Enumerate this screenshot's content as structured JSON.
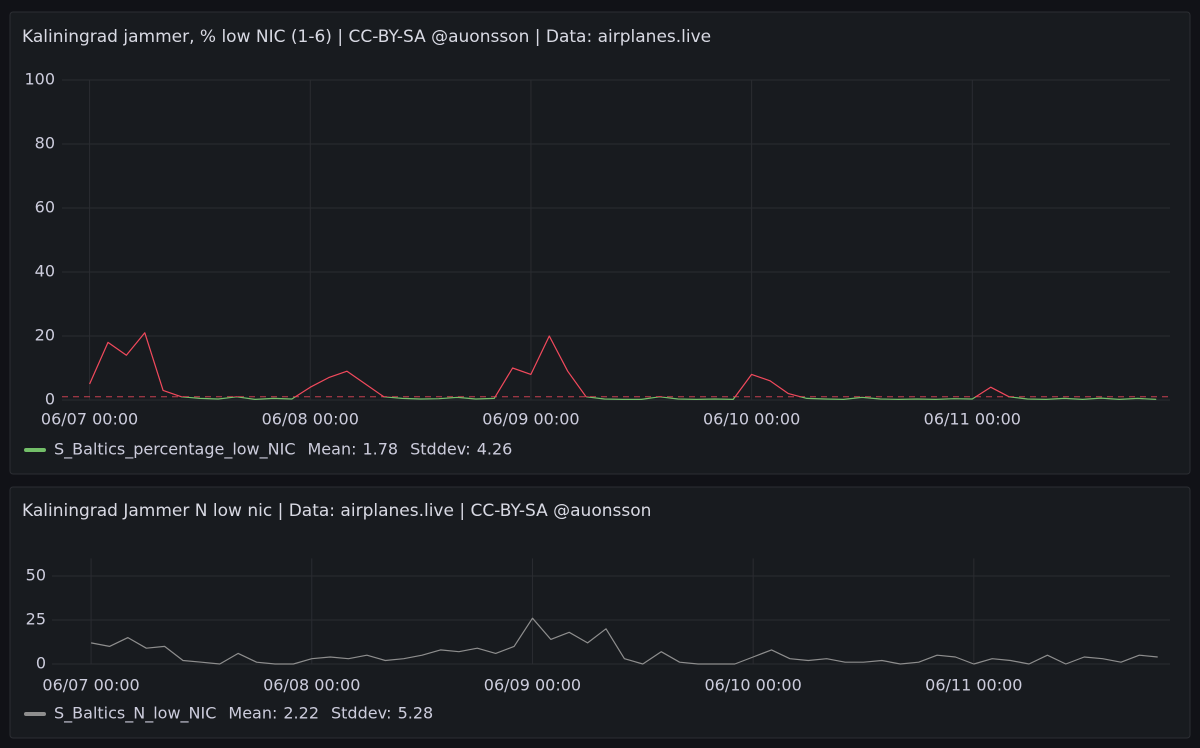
{
  "chart_data": [
    {
      "type": "line",
      "title": "Kaliningrad jammer, % low NIC (1-6) | CC-BY-SA @auonsson | Data: airplanes.live",
      "x": [
        "06/07 00:00",
        "06/07 02:00",
        "06/07 04:00",
        "06/07 06:00",
        "06/07 08:00",
        "06/07 10:00",
        "06/07 12:00",
        "06/07 14:00",
        "06/07 16:00",
        "06/07 18:00",
        "06/07 20:00",
        "06/07 22:00",
        "06/08 00:00",
        "06/08 02:00",
        "06/08 04:00",
        "06/08 06:00",
        "06/08 08:00",
        "06/08 10:00",
        "06/08 12:00",
        "06/08 14:00",
        "06/08 16:00",
        "06/08 18:00",
        "06/08 20:00",
        "06/08 22:00",
        "06/09 00:00",
        "06/09 02:00",
        "06/09 04:00",
        "06/09 06:00",
        "06/09 08:00",
        "06/09 10:00",
        "06/09 12:00",
        "06/09 14:00",
        "06/09 16:00",
        "06/09 18:00",
        "06/09 20:00",
        "06/09 22:00",
        "06/10 00:00",
        "06/10 02:00",
        "06/10 04:00",
        "06/10 06:00",
        "06/10 08:00",
        "06/10 10:00",
        "06/10 12:00",
        "06/10 14:00",
        "06/10 16:00",
        "06/10 18:00",
        "06/10 20:00",
        "06/10 22:00",
        "06/11 00:00",
        "06/11 02:00",
        "06/11 04:00",
        "06/11 06:00",
        "06/11 08:00",
        "06/11 10:00",
        "06/11 12:00",
        "06/11 14:00",
        "06/11 16:00",
        "06/11 18:00",
        "06/11 20:00"
      ],
      "xlim": [
        "06/06 21:00",
        "06/11 21:30"
      ],
      "xticks": [
        "06/07 00:00",
        "06/08 00:00",
        "06/09 00:00",
        "06/10 00:00",
        "06/11 00:00"
      ],
      "ylim": [
        0,
        100
      ],
      "yticks": [
        0,
        20,
        40,
        60,
        80,
        100
      ],
      "grid": true,
      "threshold": {
        "value": 1,
        "color": "#f2495c"
      },
      "series": [
        {
          "name": "S_Baltics_percentage_low_NIC",
          "color": "#73bf69",
          "values": [
            5,
            18,
            14,
            21,
            3,
            1,
            0.5,
            0.3,
            1,
            0.2,
            0.5,
            0.3,
            4,
            7,
            9,
            5,
            1,
            0.5,
            0.3,
            0.4,
            0.8,
            0.3,
            0.5,
            10,
            8,
            20,
            9,
            1,
            0.3,
            0.2,
            0.2,
            1,
            0.3,
            0.2,
            0.3,
            0.2,
            8,
            6,
            2,
            0.5,
            0.3,
            0.2,
            0.8,
            0.3,
            0.2,
            0.3,
            0.2,
            0.4,
            0.3,
            4,
            1,
            0.3,
            0.2,
            0.5,
            0.2,
            0.6,
            0.2,
            0.5,
            0.2
          ],
          "stats": [
            {
              "label": "Mean:",
              "value": 1.78
            },
            {
              "label": "Stddev:",
              "value": 4.26
            }
          ]
        }
      ]
    },
    {
      "type": "line",
      "title": "Kaliningrad Jammer N low nic | Data: airplanes.live | CC-BY-SA @auonsson",
      "x": [
        "06/07 00:00",
        "06/07 02:00",
        "06/07 04:00",
        "06/07 06:00",
        "06/07 08:00",
        "06/07 10:00",
        "06/07 12:00",
        "06/07 14:00",
        "06/07 16:00",
        "06/07 18:00",
        "06/07 20:00",
        "06/07 22:00",
        "06/08 00:00",
        "06/08 02:00",
        "06/08 04:00",
        "06/08 06:00",
        "06/08 08:00",
        "06/08 10:00",
        "06/08 12:00",
        "06/08 14:00",
        "06/08 16:00",
        "06/08 18:00",
        "06/08 20:00",
        "06/08 22:00",
        "06/09 00:00",
        "06/09 02:00",
        "06/09 04:00",
        "06/09 06:00",
        "06/09 08:00",
        "06/09 10:00",
        "06/09 12:00",
        "06/09 14:00",
        "06/09 16:00",
        "06/09 18:00",
        "06/09 20:00",
        "06/09 22:00",
        "06/10 00:00",
        "06/10 02:00",
        "06/10 04:00",
        "06/10 06:00",
        "06/10 08:00",
        "06/10 10:00",
        "06/10 12:00",
        "06/10 14:00",
        "06/10 16:00",
        "06/10 18:00",
        "06/10 20:00",
        "06/10 22:00",
        "06/11 00:00",
        "06/11 02:00",
        "06/11 04:00",
        "06/11 06:00",
        "06/11 08:00",
        "06/11 10:00",
        "06/11 12:00",
        "06/11 14:00",
        "06/11 16:00",
        "06/11 18:00",
        "06/11 20:00"
      ],
      "xlim": [
        "06/06 19:45",
        "06/11 21:20"
      ],
      "xticks": [
        "06/07 00:00",
        "06/08 00:00",
        "06/09 00:00",
        "06/10 00:00",
        "06/11 00:00"
      ],
      "ylim": [
        0,
        60
      ],
      "yticks": [
        0,
        25,
        50
      ],
      "grid": true,
      "series": [
        {
          "name": "S_Baltics_N_low_NIC",
          "color": "#8e8e8e",
          "values": [
            12,
            10,
            15,
            9,
            10,
            2,
            1,
            0,
            6,
            1,
            0,
            0,
            3,
            4,
            3,
            5,
            2,
            3,
            5,
            8,
            7,
            9,
            6,
            10,
            26,
            14,
            18,
            12,
            20,
            3,
            0,
            7,
            1,
            0,
            0,
            0,
            4,
            8,
            3,
            2,
            3,
            1,
            1,
            2,
            0,
            1,
            5,
            4,
            0,
            3,
            2,
            0,
            5,
            0,
            4,
            3,
            1,
            5,
            4
          ],
          "stats": [
            {
              "label": "Mean:",
              "value": 2.22
            },
            {
              "label": "Stddev:",
              "value": 5.28
            }
          ]
        }
      ]
    }
  ]
}
